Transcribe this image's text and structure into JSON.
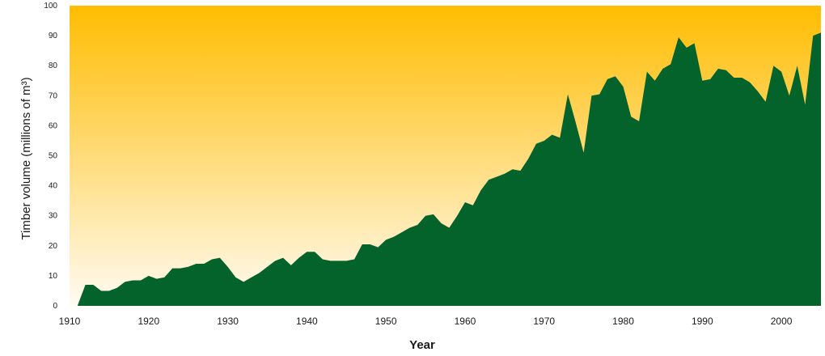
{
  "chart_data": {
    "type": "area",
    "title": "",
    "xlabel": "Year",
    "ylabel": "Timber volume (millions of m³)",
    "xlim": [
      1910,
      2005
    ],
    "ylim": [
      0,
      100
    ],
    "xticks": [
      1910,
      1920,
      1930,
      1940,
      1950,
      1960,
      1970,
      1980,
      1990,
      2000
    ],
    "yticks": [
      0,
      10,
      20,
      30,
      40,
      50,
      60,
      70,
      80,
      90,
      100
    ],
    "grid": false,
    "legend": "none",
    "colors": {
      "area": "#04622b",
      "background_top": "#ffbc00",
      "background_bottom": "#fffbf3"
    },
    "series": [
      {
        "x": [
          1911,
          1912,
          1913,
          1914,
          1915,
          1916,
          1917,
          1918,
          1919,
          1920,
          1921,
          1922,
          1923,
          1924,
          1925,
          1926,
          1927,
          1928,
          1929,
          1930,
          1931,
          1932,
          1933,
          1934,
          1935,
          1936,
          1937,
          1938,
          1939,
          1940,
          1941,
          1942,
          1943,
          1944,
          1945,
          1946,
          1947,
          1948,
          1949,
          1950,
          1951,
          1952,
          1953,
          1954,
          1955,
          1956,
          1957,
          1958,
          1959,
          1960,
          1961,
          1962,
          1963,
          1964,
          1965,
          1966,
          1967,
          1968,
          1969,
          1970,
          1971,
          1972,
          1973,
          1974,
          1975,
          1976,
          1977,
          1978,
          1979,
          1980,
          1981,
          1982,
          1983,
          1984,
          1985,
          1986,
          1987,
          1988,
          1989,
          1990,
          1991,
          1992,
          1993,
          1994,
          1995,
          1996,
          1997,
          1998,
          1999,
          2000,
          2001,
          2002,
          2003,
          2004,
          2005
        ],
        "values": [
          0,
          7,
          7,
          5,
          5,
          6,
          8,
          8.5,
          8.5,
          10,
          9,
          9.5,
          12.5,
          12.5,
          13,
          14,
          14,
          15.5,
          16,
          13,
          9.5,
          8,
          9.5,
          11,
          13,
          15,
          16,
          13.5,
          16,
          18,
          18,
          15.5,
          15,
          15,
          15,
          15.5,
          20.5,
          20.5,
          19.5,
          22,
          23,
          24.5,
          26,
          27,
          30,
          30.5,
          27.5,
          26,
          30,
          34.5,
          33.5,
          38.5,
          42,
          43,
          44,
          45.5,
          45,
          49,
          54,
          55,
          57,
          56,
          70.5,
          61,
          51,
          70,
          70.5,
          75.5,
          76.5,
          73,
          63,
          61.5,
          78,
          75,
          79,
          80.5,
          89.5,
          86,
          87.5,
          75,
          75.5,
          79,
          78.5,
          76,
          76,
          74.5,
          71.5,
          68,
          80,
          78,
          70,
          80,
          67,
          90,
          91
        ]
      }
    ]
  }
}
